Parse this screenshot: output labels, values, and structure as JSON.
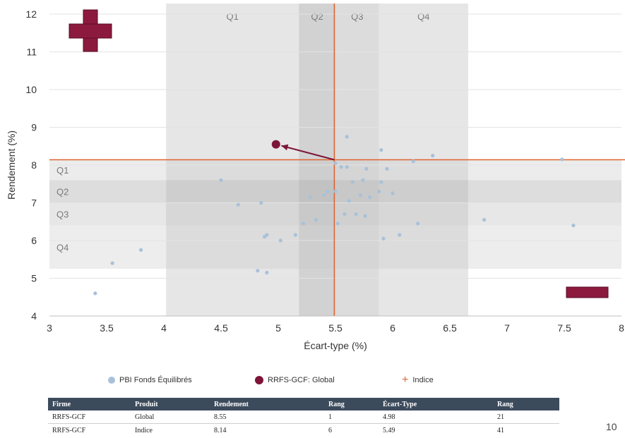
{
  "chart_data": {
    "type": "scatter",
    "xlabel": "Écart-type (%)",
    "ylabel": "Rendement (%)",
    "xlim": [
      3,
      8
    ],
    "ylim": [
      4,
      12
    ],
    "x_ticks": [
      "3",
      "3.5",
      "4",
      "4.5",
      "5",
      "5.5",
      "6",
      "6.5",
      "7",
      "7.5",
      "8"
    ],
    "y_ticks": [
      "4",
      "5",
      "6",
      "7",
      "8",
      "9",
      "10",
      "11",
      "12"
    ],
    "grid": "horizontal",
    "vertical_quartiles": [
      {
        "label": "Q1",
        "from": 4.02,
        "to": 5.18
      },
      {
        "label": "Q2",
        "from": 5.18,
        "to": 5.5
      },
      {
        "label": "Q3",
        "from": 5.5,
        "to": 5.88
      },
      {
        "label": "Q4",
        "from": 5.88,
        "to": 6.66
      }
    ],
    "horizontal_quartiles": [
      {
        "label": "Q1",
        "from": 7.6,
        "to": 8.14
      },
      {
        "label": "Q2",
        "from": 7.0,
        "to": 7.6
      },
      {
        "label": "Q3",
        "from": 6.4,
        "to": 7.0
      },
      {
        "label": "Q4",
        "from": 5.25,
        "to": 6.4
      }
    ],
    "index_crosshair": {
      "x": 5.49,
      "y": 8.14,
      "color": "#e0632f"
    },
    "highlight": {
      "x": 4.98,
      "y": 8.55,
      "color": "#7d1538"
    },
    "series": [
      {
        "name": "PBI Fonds Équilibrés",
        "color": "#a8c1d9",
        "points": [
          [
            3.4,
            4.6
          ],
          [
            3.55,
            5.4
          ],
          [
            3.8,
            5.75
          ],
          [
            4.5,
            7.6
          ],
          [
            4.65,
            6.95
          ],
          [
            4.82,
            5.2
          ],
          [
            4.85,
            7.0
          ],
          [
            4.88,
            6.1
          ],
          [
            4.9,
            5.15
          ],
          [
            4.9,
            6.15
          ],
          [
            5.02,
            6.0
          ],
          [
            5.15,
            6.15
          ],
          [
            5.22,
            6.45
          ],
          [
            5.28,
            7.15
          ],
          [
            5.33,
            6.55
          ],
          [
            5.4,
            7.2
          ],
          [
            5.43,
            7.3
          ],
          [
            5.5,
            7.3
          ],
          [
            5.5,
            8.05
          ],
          [
            5.52,
            6.45
          ],
          [
            5.55,
            7.95
          ],
          [
            5.58,
            6.7
          ],
          [
            5.6,
            8.75
          ],
          [
            5.6,
            7.95
          ],
          [
            5.62,
            7.05
          ],
          [
            5.65,
            7.55
          ],
          [
            5.68,
            6.7
          ],
          [
            5.72,
            7.2
          ],
          [
            5.74,
            7.6
          ],
          [
            5.76,
            6.65
          ],
          [
            5.77,
            7.9
          ],
          [
            5.8,
            7.15
          ],
          [
            5.88,
            7.3
          ],
          [
            5.9,
            7.55
          ],
          [
            5.9,
            8.4
          ],
          [
            5.92,
            6.05
          ],
          [
            5.95,
            7.9
          ],
          [
            6.0,
            7.25
          ],
          [
            6.06,
            6.15
          ],
          [
            6.18,
            8.1
          ],
          [
            6.22,
            6.45
          ],
          [
            6.35,
            8.25
          ],
          [
            6.8,
            6.55
          ],
          [
            7.48,
            8.15
          ],
          [
            7.58,
            6.4
          ]
        ]
      }
    ]
  },
  "quadrant_labels": {
    "plus": "+",
    "minus": "–"
  },
  "legend": {
    "items": [
      "PBI Fonds Équilibrés",
      "RRFS-GCF: Global",
      "Indice"
    ]
  },
  "table": {
    "headers": [
      "Firme",
      "Produit",
      "Rendement",
      "Rang",
      "Écart-Type",
      "Rang"
    ],
    "rows": [
      [
        "RRFS-GCF",
        "Global",
        "8.55",
        "1",
        "4.98",
        "21"
      ],
      [
        "RRFS-GCF",
        "Indice",
        "8.14",
        "6",
        "5.49",
        "41"
      ]
    ]
  },
  "page_number": "10"
}
